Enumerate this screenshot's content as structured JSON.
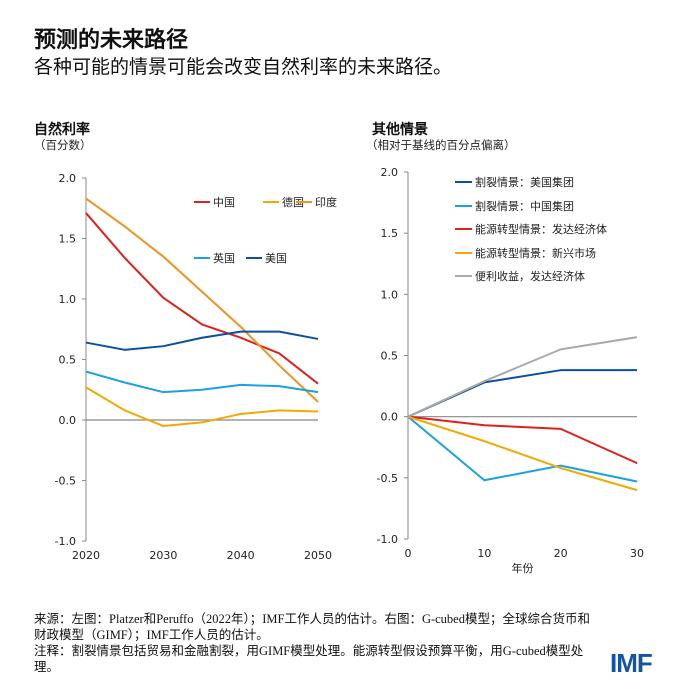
{
  "title": "预测的未来路径",
  "subtitle": "各种可能的情景可能会改变自然利率的未来路径。",
  "notes": {
    "source": "来源：左图：Platzer和Peruffo（2022年）；IMF工作人员的估计。右图：G-cubed模型；全球综合货币和财政模型（GIMF）；IMF工作人员的估计。",
    "note": "注释：割裂情景包括贸易和金融割裂，用GIMF模型处理。能源转型假设预算平衡，用G-cubed模型处理。"
  },
  "logo": "IMF",
  "chart_data": [
    {
      "type": "line",
      "title": "自然利率",
      "subtitle": "（百分数）",
      "x": [
        2020,
        2025,
        2030,
        2035,
        2040,
        2045,
        2050
      ],
      "xticks": [
        "2020",
        "2030",
        "2040",
        "2050"
      ],
      "xtick_values": [
        2020,
        2030,
        2040,
        2050
      ],
      "xlim": [
        2020,
        2050
      ],
      "ylim": [
        -1.0,
        2.0
      ],
      "yticks": [
        "2.0",
        "1.5",
        "1.0",
        "0.5",
        "0.0",
        "-0.5",
        "-1.0"
      ],
      "ytick_values": [
        2.0,
        1.5,
        1.0,
        0.5,
        0.0,
        -0.5,
        -1.0
      ],
      "legend": "top-right",
      "series": [
        {
          "name": "中国",
          "color": "#e0201b",
          "values": [
            1.71,
            1.34,
            1.01,
            0.79,
            0.68,
            0.55,
            0.3
          ]
        },
        {
          "name": "德国",
          "color": "#f5a800",
          "values": [
            0.27,
            0.08,
            -0.05,
            -0.02,
            0.05,
            0.08,
            0.07
          ]
        },
        {
          "name": "印度",
          "color": "#f7901e",
          "values": [
            1.83,
            1.6,
            1.35,
            1.06,
            0.77,
            0.45,
            0.15
          ]
        },
        {
          "name": "英国",
          "color": "#1ba1e2",
          "values": [
            0.4,
            0.31,
            0.23,
            0.25,
            0.29,
            0.28,
            0.23
          ]
        },
        {
          "name": "美国",
          "color": "#0b4ea2",
          "values": [
            0.64,
            0.58,
            0.61,
            0.68,
            0.73,
            0.73,
            0.67
          ]
        }
      ]
    },
    {
      "type": "line",
      "title": "其他情景",
      "subtitle": "（相对于基线的百分点偏离）",
      "xlabel": "年份",
      "x": [
        0,
        10,
        20,
        30
      ],
      "xticks": [
        "0",
        "10",
        "20",
        "30"
      ],
      "xtick_values": [
        0,
        10,
        20,
        30
      ],
      "xlim": [
        0,
        30
      ],
      "ylim": [
        -1.0,
        2.0
      ],
      "yticks": [
        "2.0",
        "1.5",
        "1.0",
        "0.5",
        "0.0",
        "-0.5",
        "-1.0"
      ],
      "ytick_values": [
        2.0,
        1.5,
        1.0,
        0.5,
        0.0,
        -0.5,
        -1.0
      ],
      "legend": "top",
      "series": [
        {
          "name": "割裂情景：美国集团",
          "color": "#0b4ea2",
          "values": [
            0,
            0.28,
            0.38,
            0.38
          ]
        },
        {
          "name": "割裂情景：中国集团",
          "color": "#1ba1e2",
          "values": [
            0,
            -0.52,
            -0.4,
            -0.53
          ]
        },
        {
          "name": "能源转型情景：发达经济体",
          "color": "#e0201b",
          "values": [
            0,
            -0.07,
            -0.1,
            -0.38
          ]
        },
        {
          "name": "能源转型情景：新兴市场",
          "color": "#f5a800",
          "values": [
            0,
            -0.2,
            -0.42,
            -0.6
          ]
        },
        {
          "name": "便利收益，发达经济体",
          "color": "#aaaaaa",
          "values": [
            0,
            0.29,
            0.55,
            0.65
          ]
        }
      ]
    }
  ]
}
